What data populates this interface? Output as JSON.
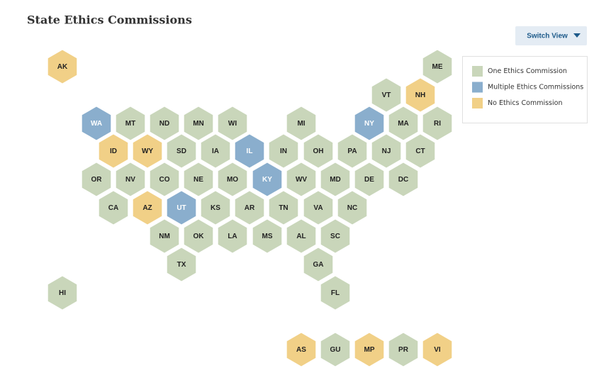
{
  "title": "State Ethics Commissions",
  "button": "Switch View",
  "legend": {
    "items": [
      {
        "label": "One Ethics Commission",
        "color": "#c9d6ba",
        "text_color": "#222222",
        "states": [
          "ME",
          "VT",
          "MT",
          "ND",
          "MN",
          "WI",
          "MI",
          "MA",
          "RI",
          "SD",
          "IA",
          "IN",
          "OH",
          "PA",
          "NJ",
          "CT",
          "OR",
          "NV",
          "CO",
          "NE",
          "MO",
          "WV",
          "MD",
          "DE",
          "DC",
          "CA",
          "KS",
          "AR",
          "TN",
          "VA",
          "NC",
          "NM",
          "OK",
          "LA",
          "MS",
          "AL",
          "SC",
          "TX",
          "GA",
          "HI",
          "FL",
          "GU",
          "PR"
        ]
      },
      {
        "label": "Multiple Ethics Commissions",
        "color": "#8aaecd",
        "text_color": "#ffffff",
        "states": [
          "WA",
          "IL",
          "NY",
          "KY",
          "UT"
        ]
      },
      {
        "label": "No Ethics Commission",
        "color": "#f1d087",
        "text_color": "#222222",
        "states": [
          "AK",
          "NH",
          "ID",
          "WY",
          "AZ",
          "AS",
          "MP",
          "VI"
        ]
      }
    ]
  }
}
